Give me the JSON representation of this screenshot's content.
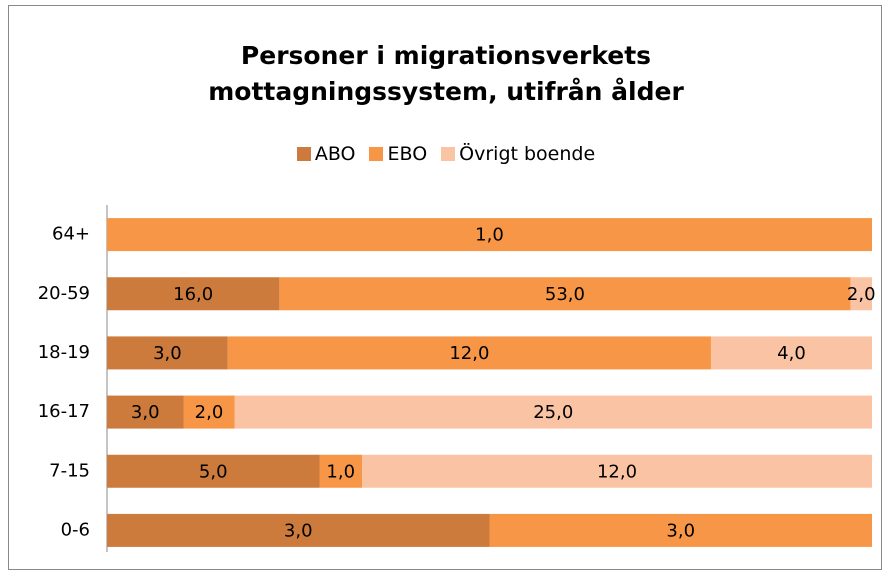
{
  "chart_data": {
    "type": "bar",
    "orientation": "horizontal",
    "stacking": "percent",
    "title": "Personer i migrationsverkets mottagningssystem, utifrån ålder",
    "categories": [
      "64+",
      "20-59",
      "18-19",
      "16-17",
      "7-15",
      "0-6"
    ],
    "series": [
      {
        "name": "ABO",
        "color": "#cc7b3c",
        "values": [
          0,
          16,
          3,
          3,
          5,
          3
        ],
        "value_labels": [
          null,
          "16,0",
          "3,0",
          "3,0",
          "5,0",
          "3,0"
        ]
      },
      {
        "name": "EBO",
        "color": "#f79646",
        "values": [
          1,
          53,
          12,
          2,
          1,
          3
        ],
        "value_labels": [
          "1,0",
          "53,0",
          "12,0",
          "2,0",
          "1,0",
          "3,0"
        ]
      },
      {
        "name": "Övrigt boende",
        "color": "#fac4a4",
        "values": [
          0,
          2,
          4,
          25,
          12,
          0
        ],
        "value_labels": [
          null,
          "2,0",
          "4,0",
          "25,0",
          "12,0",
          null
        ]
      }
    ],
    "legend": "top"
  }
}
